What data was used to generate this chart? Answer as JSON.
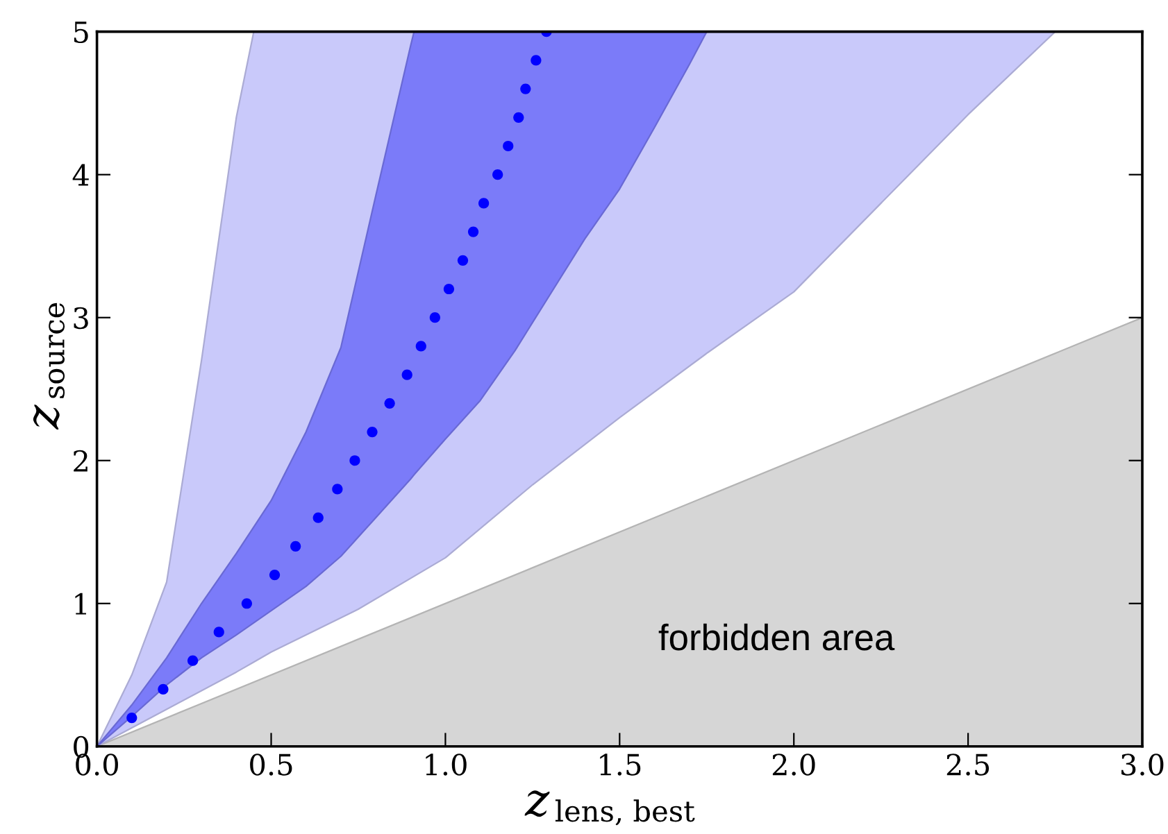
{
  "chart_data": {
    "type": "area",
    "xlabel": "z$_{lens, best}$",
    "ylabel": "z$_{source}$",
    "xlim": [
      0,
      3
    ],
    "ylim": [
      0,
      5
    ],
    "xticks": [
      {
        "value": 0,
        "label": "0.0"
      },
      {
        "value": 0.5,
        "label": "0.5"
      },
      {
        "value": 1,
        "label": "1.0"
      },
      {
        "value": 1.5,
        "label": "1.5"
      },
      {
        "value": 2,
        "label": "2.0"
      },
      {
        "value": 2.5,
        "label": "2.5"
      },
      {
        "value": 3,
        "label": "3.0"
      }
    ],
    "yticks": [
      0,
      1,
      2,
      3,
      4,
      5
    ],
    "grid": false,
    "legend": false,
    "series": [
      {
        "type": "area",
        "color": "#d6d6d6",
        "x": [
          0,
          3
        ],
        "values": [
          0,
          3
        ]
      },
      {
        "type": "area",
        "color": "#c9c9fa",
        "x": [
          0,
          0.1,
          0.2,
          0.3,
          0.4,
          0.45,
          0.5,
          0.75,
          1.0,
          1.25,
          1.5,
          1.75,
          2.0,
          2.25,
          2.5,
          2.75
        ],
        "values": [
          null,
          null,
          null,
          null,
          null,
          null,
          null,
          null,
          null,
          null,
          null,
          null,
          null,
          null,
          null,
          null
        ],
        "lower": [
          0,
          0.13,
          0.26,
          0.39,
          0.52,
          0.59,
          0.66,
          0.96,
          1.32,
          1.83,
          2.3,
          2.75,
          3.18,
          3.8,
          4.42,
          5
        ],
        "upper": [
          0,
          0.5,
          1.15,
          2.7,
          4.4,
          5,
          5,
          5,
          5,
          5,
          5,
          5,
          5,
          5,
          5,
          5
        ]
      },
      {
        "type": "area",
        "color": "#7b7bf9",
        "x": [
          0,
          0.1,
          0.2,
          0.3,
          0.4,
          0.5,
          0.6,
          0.7,
          0.8,
          0.9,
          0.91,
          1.0,
          1.1,
          1.2,
          1.3,
          1.4,
          1.5,
          1.6,
          1.7,
          1.75
        ],
        "values": [
          null,
          null,
          null,
          null,
          null,
          null,
          null,
          null,
          null,
          null,
          null,
          null,
          null,
          null,
          null,
          null,
          null,
          null,
          null,
          null
        ],
        "lower": [
          0,
          0.21,
          0.43,
          0.62,
          0.78,
          0.95,
          1.12,
          1.33,
          1.6,
          1.87,
          1.9,
          2.15,
          2.42,
          2.77,
          3.16,
          3.55,
          3.9,
          4.33,
          4.77,
          5
        ],
        "upper": [
          0,
          0.29,
          0.62,
          1.0,
          1.35,
          1.72,
          2.2,
          2.79,
          3.85,
          4.9,
          5,
          5,
          5,
          5,
          5,
          5,
          5,
          5,
          5,
          5
        ]
      },
      {
        "type": "scatter",
        "color": "#0000ff",
        "marker": "circle",
        "x": [
          0.1,
          0.19,
          0.275,
          0.35,
          0.43,
          0.51,
          0.57,
          0.635,
          0.69,
          0.74,
          0.79,
          0.84,
          0.89,
          0.93,
          0.97,
          1.01,
          1.05,
          1.08,
          1.11,
          1.15,
          1.18,
          1.21,
          1.23,
          1.26,
          1.29
        ],
        "values": [
          0.2,
          0.4,
          0.6,
          0.8,
          1.0,
          1.2,
          1.4,
          1.6,
          1.8,
          2.0,
          2.2,
          2.4,
          2.6,
          2.8,
          3.0,
          3.2,
          3.4,
          3.6,
          3.8,
          4.0,
          4.2,
          4.4,
          4.6,
          4.8,
          5.0
        ]
      }
    ],
    "annotations": [
      "forbidden area"
    ]
  }
}
